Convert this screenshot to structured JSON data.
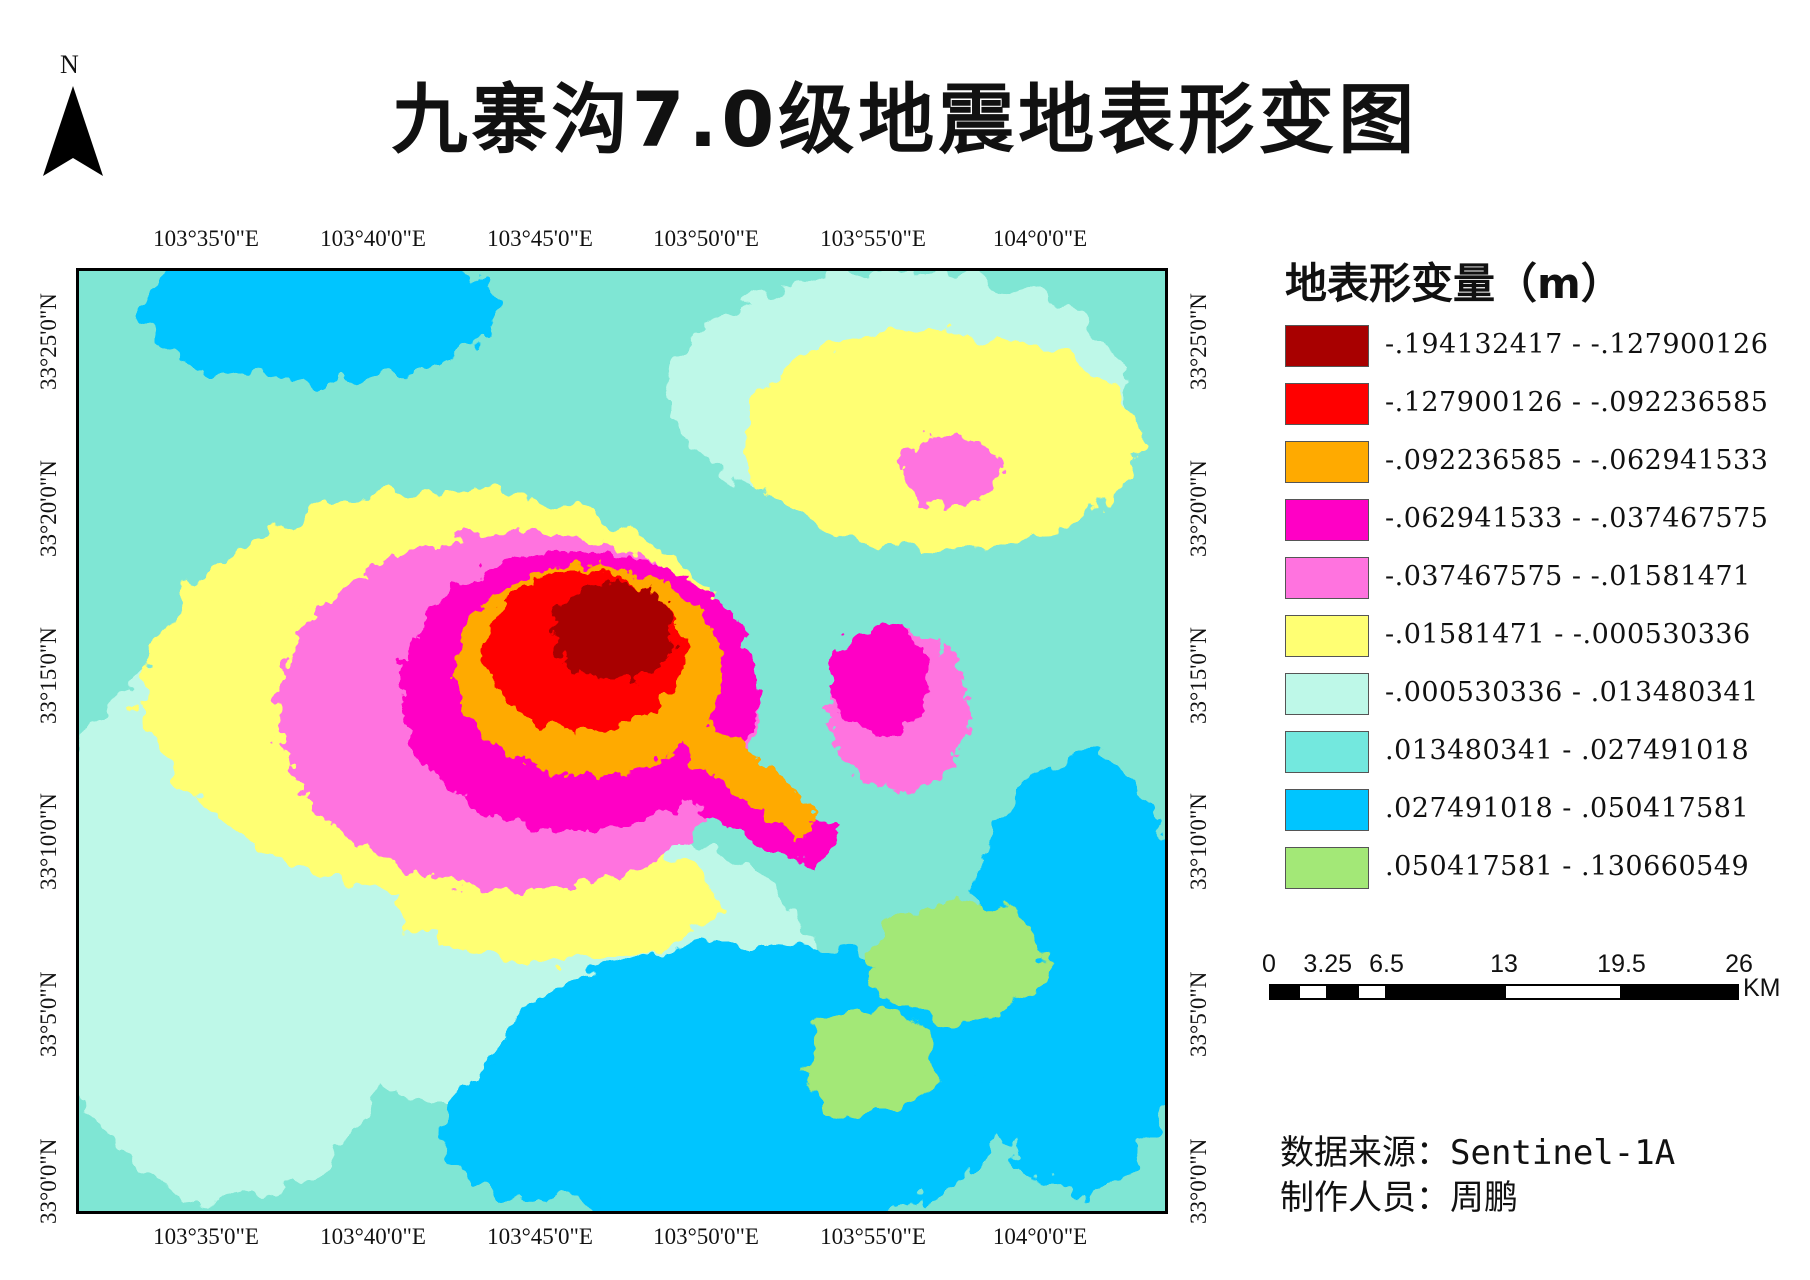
{
  "title": "九寨沟7.0级地震地表形变图",
  "north_arrow": {
    "label": "N"
  },
  "map": {
    "longitude_labels": [
      "103°35'0\"E",
      "103°40'0\"E",
      "103°45'0\"E",
      "103°50'0\"E",
      "103°55'0\"E",
      "104°0'0\"E"
    ],
    "latitude_labels": [
      "33°25'0\"N",
      "33°20'0\"N",
      "33°15'0\"N",
      "33°10'0\"N",
      "33°5'0\"N",
      "33°0'0\"N"
    ]
  },
  "legend": {
    "title": "地表形变量（m）",
    "items": [
      {
        "label": "-.194132417 - -.127900126",
        "color": "#a80000"
      },
      {
        "label": "-.127900126 - -.092236585",
        "color": "#ff0000"
      },
      {
        "label": "-.092236585 - -.062941533",
        "color": "#ffaa00"
      },
      {
        "label": "-.062941533 - -.037467575",
        "color": "#ff00c5"
      },
      {
        "label": "-.037467575 - -.01581471",
        "color": "#ff73df"
      },
      {
        "label": "-.01581471 - -.000530336",
        "color": "#ffff73"
      },
      {
        "label": "-.000530336 - .013480341",
        "color": "#bef8e8"
      },
      {
        "label": ".013480341 - .027491018",
        "color": "#73e8de"
      },
      {
        "label": ".027491018 - .050417581",
        "color": "#00c5ff"
      },
      {
        "label": ".050417581 - .130660549",
        "color": "#a3e877"
      }
    ]
  },
  "scale_bar": {
    "tick_labels": [
      "0",
      "3.25",
      "6.5",
      "13",
      "19.5",
      "26"
    ],
    "unit": "KM"
  },
  "source": {
    "data_label": "数据来源：",
    "data_value": "Sentinel-1A",
    "author_label": "制作人员：",
    "author_value": "周鹏"
  }
}
